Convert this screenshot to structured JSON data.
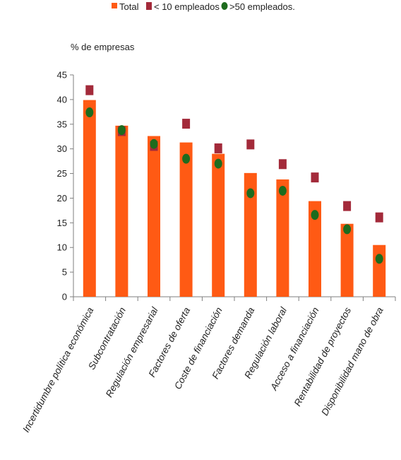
{
  "chart_data": {
    "type": "bar",
    "ylabel": "% de empresas",
    "ylim": [
      0,
      45
    ],
    "yticks": [
      0,
      5,
      10,
      15,
      20,
      25,
      30,
      35,
      40,
      45
    ],
    "legend_position": "top",
    "categories": [
      "Incertidumbre política económica",
      "Subcontratación",
      "Regulación empresarial",
      "Factores de oferta",
      "Coste de financiación",
      "Factores demanda",
      "Regulación laboral",
      "Acceso a financiación",
      "Rentabilidad de proyectos",
      "Disponibilidad mano de obra"
    ],
    "series": [
      {
        "name": "Total",
        "kind": "bar",
        "color": "#ff5a14",
        "values": [
          39.9,
          34.7,
          32.6,
          31.3,
          29.0,
          25.1,
          23.8,
          19.4,
          14.8,
          10.5
        ]
      },
      {
        "name": "< 10 empleados",
        "kind": "square-marker",
        "color": "#a32a3a",
        "values": [
          41.9,
          33.6,
          30.6,
          35.1,
          30.1,
          30.9,
          26.9,
          24.2,
          18.4,
          16.1
        ]
      },
      {
        "name": ">50 empleados.",
        "kind": "circle-marker",
        "color": "#1e6b1e",
        "values": [
          37.4,
          33.8,
          31.0,
          28.0,
          27.0,
          21.0,
          21.5,
          16.6,
          13.7,
          7.7
        ]
      }
    ]
  }
}
